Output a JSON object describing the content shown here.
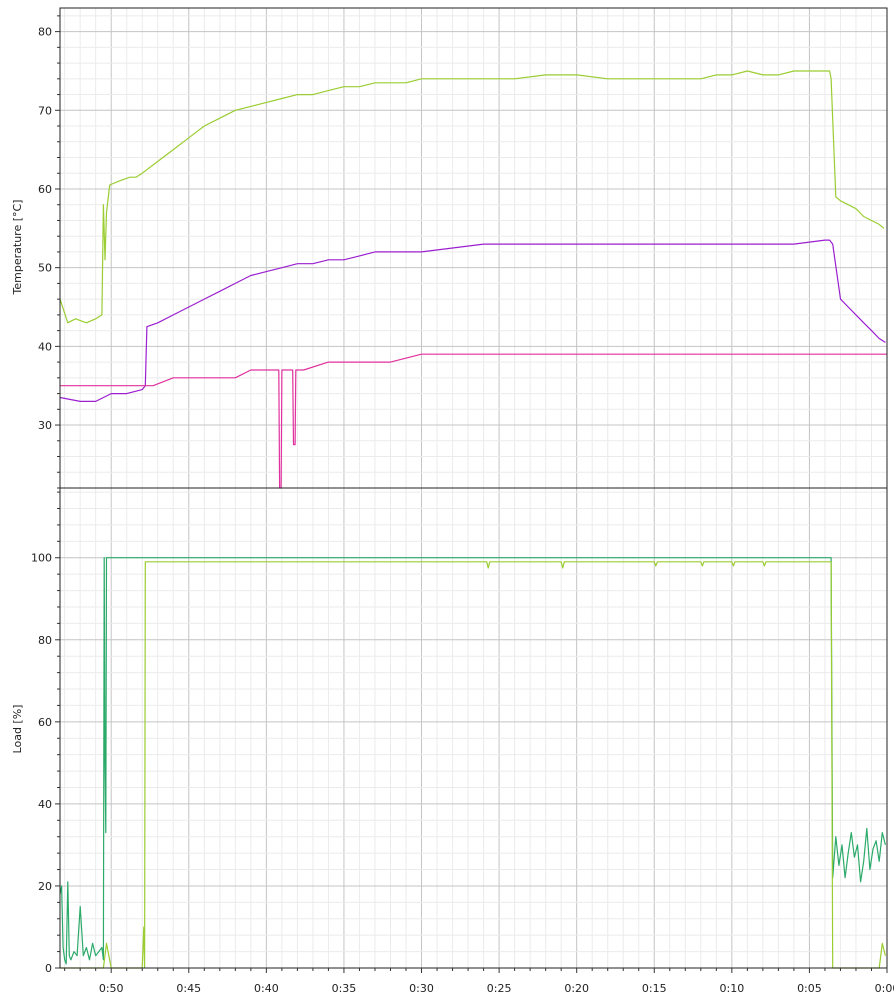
{
  "chart_data": [
    {
      "type": "line",
      "title": "",
      "xlabel": "",
      "ylabel": "Temperature [°C]",
      "xlim": [
        53.3,
        0
      ],
      "x_reversed": true,
      "ylim": [
        22,
        83
      ],
      "y_ticks": [
        30,
        40,
        50,
        60,
        70,
        80
      ],
      "grid": true,
      "legend": "none",
      "series": [
        {
          "color": "#9ACD32",
          "x": [
            53.3,
            52.8,
            52.3,
            51.6,
            51.0,
            50.6,
            50.5,
            50.4,
            50.3,
            50.1,
            49.5,
            48.8,
            48.4,
            48.0,
            47.0,
            46.0,
            45.0,
            44.0,
            43.0,
            42.0,
            41.0,
            40.0,
            39.0,
            38.0,
            37.0,
            36.0,
            35.0,
            34.0,
            33.0,
            32.0,
            31.0,
            30.0,
            28.0,
            26.0,
            24.0,
            22.0,
            20.0,
            18.0,
            16.0,
            14.0,
            13.0,
            12.0,
            11.0,
            10.0,
            9.0,
            8.0,
            7.0,
            6.0,
            5.0,
            4.0,
            3.7,
            3.6,
            3.3,
            3.0,
            2.5,
            2.0,
            1.5,
            1.0,
            0.5,
            0.2
          ],
          "y": [
            46,
            43,
            43.5,
            43,
            43.5,
            44,
            58,
            51,
            57,
            60.5,
            61,
            61.5,
            61.5,
            62,
            63.5,
            65,
            66.5,
            68,
            69,
            70,
            70.5,
            71,
            71.5,
            72,
            72,
            72.5,
            73,
            73,
            73.5,
            73.5,
            73.5,
            74,
            74,
            74,
            74,
            74.5,
            74.5,
            74,
            74,
            74,
            74,
            74,
            74.5,
            74.5,
            75,
            74.5,
            74.5,
            75,
            75,
            75,
            75,
            74,
            59,
            58.5,
            58,
            57.5,
            56.5,
            56,
            55.5,
            55
          ]
        },
        {
          "color": "#9B1FD0",
          "x": [
            53.3,
            52.0,
            51.0,
            50.0,
            49.0,
            48.0,
            47.8,
            47.7,
            47.0,
            46.0,
            45.0,
            44.0,
            43.0,
            42.0,
            41.0,
            40.0,
            39.0,
            38.0,
            37.0,
            36.0,
            35.0,
            34.0,
            33.0,
            32.0,
            31.0,
            30.0,
            28.0,
            26.0,
            24.0,
            22.0,
            20.0,
            18.0,
            16.0,
            14.0,
            12.0,
            10.0,
            8.0,
            6.0,
            4.0,
            3.7,
            3.5,
            3.0,
            2.5,
            2.0,
            1.5,
            1.0,
            0.5,
            0.1
          ],
          "y": [
            33.5,
            33,
            33,
            34,
            34,
            34.5,
            35,
            42.5,
            43,
            44,
            45,
            46,
            47,
            48,
            49,
            49.5,
            50,
            50.5,
            50.5,
            51,
            51,
            51.5,
            52,
            52,
            52,
            52,
            52.5,
            53,
            53,
            53,
            53,
            53,
            53,
            53,
            53,
            53,
            53,
            53,
            53.5,
            53.5,
            53,
            46,
            45,
            44,
            43,
            42,
            41,
            40.5
          ]
        },
        {
          "color": "#E0309E",
          "x": [
            53.3,
            48.0,
            47.3,
            46.0,
            45.0,
            44.0,
            43.0,
            42.0,
            41.0,
            39.2,
            39.15,
            39.05,
            39.0,
            38.3,
            38.25,
            38.15,
            38.1,
            37.6,
            36.0,
            35.0,
            32.0,
            30.0,
            28.0,
            20.0,
            10.0,
            0.0
          ],
          "y": [
            35,
            35,
            35,
            36,
            36,
            36,
            36,
            36,
            37,
            37,
            22,
            22,
            37,
            37,
            27.5,
            27.5,
            37,
            37,
            38,
            38,
            38,
            39,
            39,
            39,
            39,
            39
          ]
        }
      ]
    },
    {
      "type": "line",
      "title": "",
      "xlabel": "",
      "ylabel": "Load [%]",
      "xlim": [
        53.3,
        0
      ],
      "x_reversed": true,
      "ylim": [
        0,
        117
      ],
      "y_ticks": [
        0,
        20,
        40,
        60,
        80,
        100
      ],
      "x_ticks": [
        50,
        45,
        40,
        35,
        30,
        25,
        20,
        15,
        10,
        5,
        0
      ],
      "x_tick_labels": [
        "0:50",
        "0:45",
        "0:40",
        "0:35",
        "0:30",
        "0:25",
        "0:20",
        "0:15",
        "0:10",
        "0:05",
        "0:00"
      ],
      "grid": true,
      "legend": "none",
      "series": [
        {
          "color": "#2BAA6A",
          "x": [
            53.3,
            53.2,
            53.1,
            53.0,
            52.9,
            52.8,
            52.7,
            52.6,
            52.4,
            52.2,
            52.0,
            51.8,
            51.6,
            51.4,
            51.2,
            51.0,
            50.8,
            50.6,
            50.5,
            50.45,
            50.4,
            50.35,
            50.3,
            50.25,
            50.2,
            48.0,
            40.0,
            30.0,
            20.0,
            10.0,
            5.0,
            3.7,
            3.6,
            3.5,
            3.3,
            3.1,
            2.9,
            2.7,
            2.5,
            2.3,
            2.1,
            1.9,
            1.7,
            1.5,
            1.3,
            1.1,
            0.9,
            0.7,
            0.5,
            0.3,
            0.1
          ],
          "y": [
            18,
            20,
            5,
            2,
            1,
            21,
            3,
            2,
            4,
            3,
            15,
            3,
            5,
            2,
            6,
            3,
            4,
            5,
            2,
            100,
            50,
            33,
            100,
            100,
            100,
            100,
            100,
            100,
            100,
            100,
            100,
            100,
            100,
            22,
            32,
            25,
            30,
            22,
            28,
            33,
            27,
            30,
            21,
            26,
            34,
            24,
            29,
            31,
            26,
            33,
            30
          ]
        },
        {
          "color": "#9ACD32",
          "x": [
            53.3,
            51.0,
            50.5,
            50.3,
            50.0,
            49.0,
            48.0,
            47.9,
            47.85,
            47.8,
            47.7,
            45.0,
            40.0,
            35.0,
            30.0,
            25.8,
            25.7,
            25.6,
            21.0,
            20.9,
            20.8,
            15.0,
            14.9,
            14.8,
            12.0,
            11.9,
            11.8,
            10.0,
            9.9,
            9.8,
            8.0,
            7.9,
            7.8,
            5.0,
            3.7,
            3.6,
            3.5,
            3.0,
            2.0,
            1.0,
            0.5,
            0.3,
            0.1
          ],
          "y": [
            0,
            0,
            0,
            6,
            0,
            0,
            0,
            10,
            0,
            99,
            99,
            99,
            99,
            99,
            99,
            99,
            97.5,
            99,
            99,
            97.5,
            99,
            99,
            98,
            99,
            99,
            98,
            99,
            99,
            98,
            99,
            99,
            98,
            99,
            99,
            99,
            99,
            0,
            0,
            0,
            0,
            0,
            6,
            3
          ]
        }
      ]
    }
  ]
}
